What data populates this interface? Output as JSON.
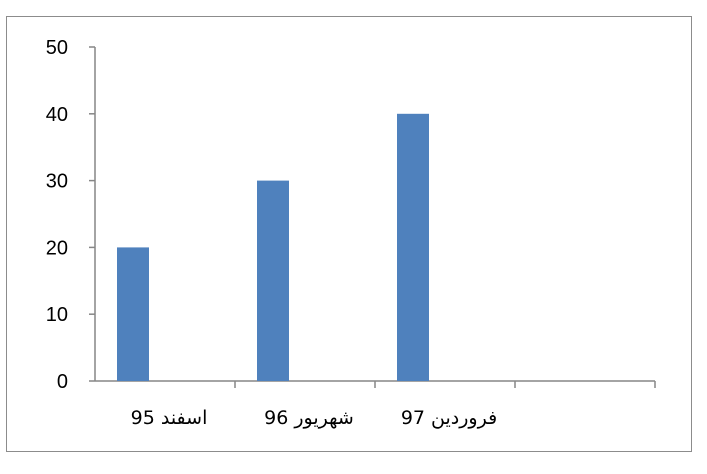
{
  "chart_data": {
    "type": "bar",
    "categories": [
      "اسفند 95",
      "شهریور 96",
      "فروردین 97",
      ""
    ],
    "values": [
      20,
      30,
      40,
      null
    ],
    "title": "",
    "xlabel": "",
    "ylabel": "",
    "ylim": [
      0,
      50
    ],
    "yticks": [
      0,
      10,
      20,
      30,
      40,
      50
    ],
    "grid": false,
    "legend": "none",
    "bar_color": "#4f81bd",
    "axis_color": "#868686"
  }
}
